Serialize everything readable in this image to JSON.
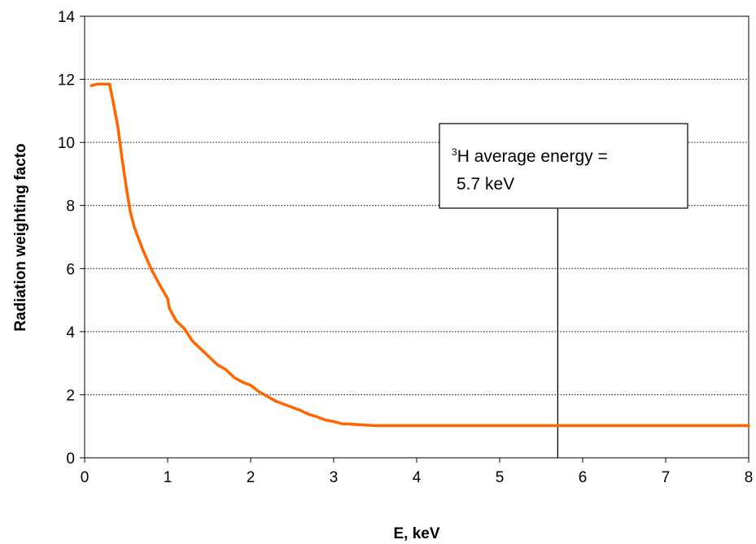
{
  "chart_data": {
    "type": "line",
    "title": "",
    "xlabel": "E, keV",
    "ylabel": "Radiation weighting facto",
    "xlim": [
      0,
      8
    ],
    "ylim": [
      0,
      14
    ],
    "xticks": [
      "0",
      "1",
      "2",
      "3",
      "4",
      "5",
      "6",
      "7",
      "8"
    ],
    "yticks": [
      "0",
      "2",
      "4",
      "6",
      "8",
      "10",
      "12",
      "14"
    ],
    "grid": "horizontal dotted",
    "series": [
      {
        "color": "#ff6600",
        "x": [
          0.08,
          0.15,
          0.2,
          0.3,
          0.35,
          0.4,
          0.45,
          0.5,
          0.55,
          0.6,
          0.7,
          0.8,
          0.9,
          1.0,
          1.02,
          1.1,
          1.2,
          1.3,
          1.4,
          1.5,
          1.6,
          1.7,
          1.8,
          1.9,
          2.0,
          2.1,
          2.2,
          2.3,
          2.5,
          2.6,
          2.7,
          2.8,
          2.9,
          3.0,
          3.1,
          3.2,
          3.3,
          3.5,
          4.0,
          5.0,
          6.0,
          7.0,
          8.0
        ],
        "y": [
          11.8,
          11.85,
          11.85,
          11.85,
          11.2,
          10.5,
          9.5,
          8.6,
          7.8,
          7.3,
          6.6,
          6.0,
          5.5,
          5.05,
          4.75,
          4.35,
          4.1,
          3.7,
          3.45,
          3.2,
          2.95,
          2.8,
          2.55,
          2.4,
          2.3,
          2.1,
          1.95,
          1.8,
          1.6,
          1.5,
          1.38,
          1.3,
          1.2,
          1.15,
          1.08,
          1.07,
          1.05,
          1.02,
          1.02,
          1.02,
          1.02,
          1.02,
          1.02
        ]
      }
    ],
    "annotation": {
      "sup": "3",
      "line1": "H average energy =",
      "line2": "5.7 keV",
      "marker_x": 5.7
    }
  }
}
